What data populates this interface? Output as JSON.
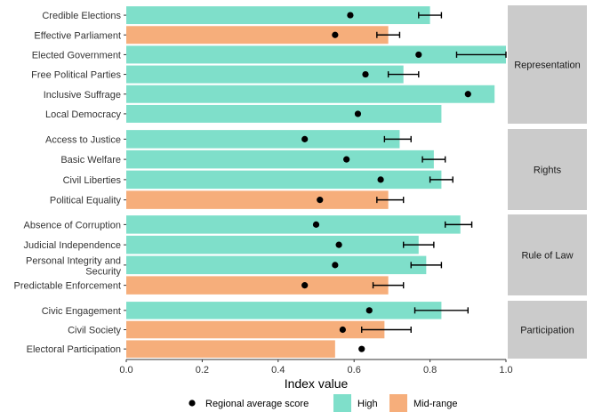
{
  "chart_data": {
    "type": "bar",
    "orientation": "horizontal",
    "xlabel": "Index value",
    "xlim": [
      0,
      1
    ],
    "xticks": [
      "0.0",
      "0.2",
      "0.4",
      "0.6",
      "0.8",
      "1.0"
    ],
    "xtick_values": [
      0,
      0.2,
      0.4,
      0.6,
      0.8,
      1.0
    ],
    "grid": false,
    "legend_position": "bottom",
    "legend": {
      "dot_label": "Regional average score",
      "high_label": "High",
      "mid_label": "Mid-range"
    },
    "colors": {
      "High": "#7fdfca",
      "Mid-range": "#f6ae7b",
      "dot": "#000000",
      "strip": "#cbcbcb"
    },
    "facets": [
      {
        "name": "Representation",
        "rows": [
          {
            "label": "Credible Elections",
            "value": 0.8,
            "category": "High",
            "avg": 0.59,
            "err": [
              0.77,
              0.83
            ]
          },
          {
            "label": "Effective Parliament",
            "value": 0.69,
            "category": "Mid-range",
            "avg": 0.55,
            "err": [
              0.66,
              0.72
            ]
          },
          {
            "label": "Elected Government",
            "value": 1.0,
            "category": "High",
            "avg": 0.77,
            "err": [
              0.87,
              1.0
            ]
          },
          {
            "label": "Free Political Parties",
            "value": 0.73,
            "category": "High",
            "avg": 0.63,
            "err": [
              0.69,
              0.77
            ]
          },
          {
            "label": "Inclusive Suffrage",
            "value": 0.97,
            "category": "High",
            "avg": 0.9,
            "err": null
          },
          {
            "label": "Local Democracy",
            "value": 0.83,
            "category": "High",
            "avg": 0.61,
            "err": null
          }
        ]
      },
      {
        "name": "Rights",
        "rows": [
          {
            "label": "Access to Justice",
            "value": 0.72,
            "category": "High",
            "avg": 0.47,
            "err": [
              0.68,
              0.75
            ]
          },
          {
            "label": "Basic Welfare",
            "value": 0.81,
            "category": "High",
            "avg": 0.58,
            "err": [
              0.78,
              0.84
            ]
          },
          {
            "label": "Civil Liberties",
            "value": 0.83,
            "category": "High",
            "avg": 0.67,
            "err": [
              0.8,
              0.86
            ]
          },
          {
            "label": "Political Equality",
            "value": 0.69,
            "category": "Mid-range",
            "avg": 0.51,
            "err": [
              0.66,
              0.73
            ]
          }
        ]
      },
      {
        "name": "Rule of Law",
        "rows": [
          {
            "label": "Absence of Corruption",
            "value": 0.88,
            "category": "High",
            "avg": 0.5,
            "err": [
              0.84,
              0.91
            ]
          },
          {
            "label": "Judicial Independence",
            "value": 0.77,
            "category": "High",
            "avg": 0.56,
            "err": [
              0.73,
              0.81
            ]
          },
          {
            "label": "Personal Integrity and Security",
            "value": 0.79,
            "category": "High",
            "avg": 0.55,
            "err": [
              0.75,
              0.83
            ]
          },
          {
            "label": "Predictable Enforcement",
            "value": 0.69,
            "category": "Mid-range",
            "avg": 0.47,
            "err": [
              0.65,
              0.73
            ]
          }
        ]
      },
      {
        "name": "Participation",
        "rows": [
          {
            "label": "Civic Engagement",
            "value": 0.83,
            "category": "High",
            "avg": 0.64,
            "err": [
              0.76,
              0.9
            ]
          },
          {
            "label": "Civil Society",
            "value": 0.68,
            "category": "Mid-range",
            "avg": 0.57,
            "err": [
              0.62,
              0.75
            ]
          },
          {
            "label": "Electoral Participation",
            "value": 0.55,
            "category": "Mid-range",
            "avg": 0.62,
            "err": null
          }
        ]
      }
    ]
  }
}
